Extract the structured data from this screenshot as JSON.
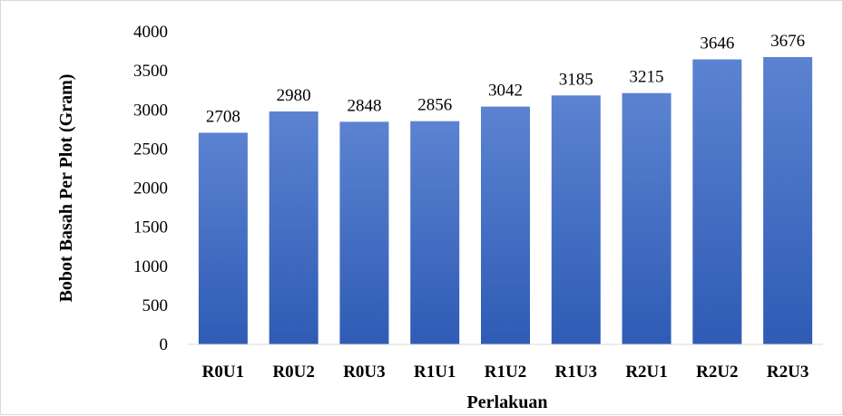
{
  "chart_data": {
    "type": "bar",
    "title": "",
    "xlabel": "Perlakuan",
    "ylabel": "Bobot  Basah Per Plot (Gram)",
    "categories": [
      "R0U1",
      "R0U2",
      "R0U3",
      "R1U1",
      "R1U2",
      "R1U3",
      "R2U1",
      "R2U2",
      "R2U3"
    ],
    "values": [
      2708,
      2980,
      2848,
      2856,
      3042,
      3185,
      3215,
      3646,
      3676
    ],
    "ylim": [
      0,
      4000
    ],
    "yticks": [
      0,
      500,
      1000,
      1500,
      2000,
      2500,
      3000,
      3500,
      4000
    ],
    "grid": false,
    "legend": "none",
    "bar_color_top": "#5b83d1",
    "bar_color_bottom": "#2f5bb5"
  }
}
